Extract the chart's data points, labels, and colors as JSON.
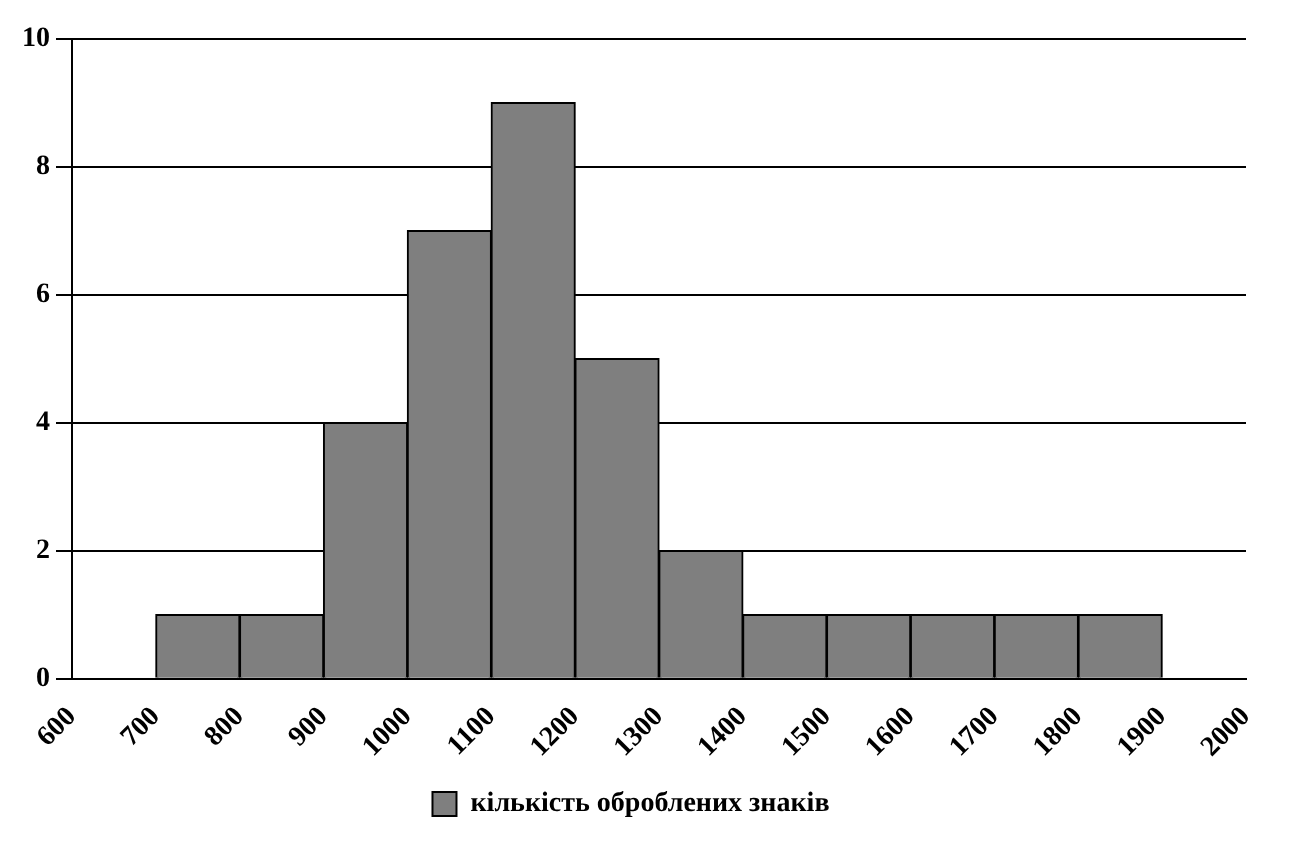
{
  "chart_data": {
    "type": "histogram",
    "bins": [
      600,
      700,
      800,
      900,
      1000,
      1100,
      1200,
      1300,
      1400,
      1500,
      1600,
      1700,
      1800,
      1900,
      2000
    ],
    "series": [
      {
        "name": "кількість оброблених знаків",
        "color": "#7f7f7f",
        "values": [
          0,
          1,
          1,
          4,
          7,
          9,
          5,
          2,
          1,
          1,
          1,
          1,
          1,
          0
        ]
      }
    ],
    "xlim": [
      600,
      2000
    ],
    "xticks": [
      600,
      700,
      800,
      900,
      1000,
      1100,
      1200,
      1300,
      1400,
      1500,
      1600,
      1700,
      1800,
      1900,
      2000
    ],
    "ylim": [
      0,
      10
    ],
    "yticks": [
      0,
      2,
      4,
      6,
      8,
      10
    ],
    "grid": "y",
    "legend": "bottom"
  }
}
